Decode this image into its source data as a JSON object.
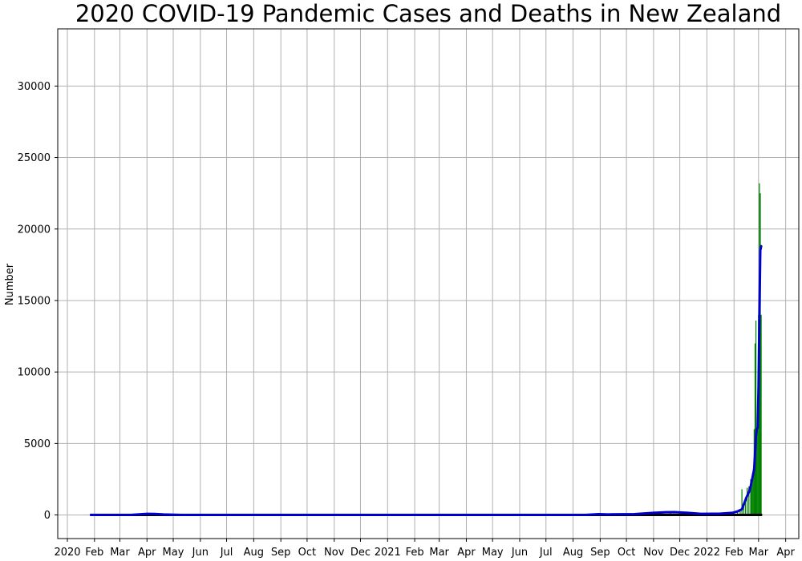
{
  "chart_data": {
    "type": "bar",
    "title": "2020 COVID-19 Pandemic Cases and Deaths in New Zealand",
    "xlabel": "",
    "ylabel": "Number",
    "x_tick_labels": [
      "2020",
      "Feb",
      "Mar",
      "Apr",
      "May",
      "Jun",
      "Jul",
      "Aug",
      "Sep",
      "Oct",
      "Nov",
      "Dec",
      "2021",
      "Feb",
      "Mar",
      "Apr",
      "May",
      "Jun",
      "Jul",
      "Aug",
      "Sep",
      "Oct",
      "Nov",
      "Dec",
      "2022",
      "Feb",
      "Mar",
      "Apr"
    ],
    "x_tick_dates": [
      "2020-01-01",
      "2020-02-01",
      "2020-03-01",
      "2020-04-01",
      "2020-05-01",
      "2020-06-01",
      "2020-07-01",
      "2020-08-01",
      "2020-09-01",
      "2020-10-01",
      "2020-11-01",
      "2020-12-01",
      "2021-01-01",
      "2021-02-01",
      "2021-03-01",
      "2021-04-01",
      "2021-05-01",
      "2021-06-01",
      "2021-07-01",
      "2021-08-01",
      "2021-09-01",
      "2021-10-01",
      "2021-11-01",
      "2021-12-01",
      "2022-01-01",
      "2022-02-01",
      "2022-03-01",
      "2022-04-01"
    ],
    "y_ticks": [
      0,
      5000,
      10000,
      15000,
      20000,
      25000,
      30000
    ],
    "xlim": [
      "2019-12-21",
      "2022-04-16"
    ],
    "ylim": [
      -1650,
      34000
    ],
    "grid": true,
    "colors": {
      "bars": "#008000",
      "moving_average": "#0000cc",
      "deaths": "#000000"
    },
    "series": [
      {
        "type": "bar",
        "x": [
          "2020-03-25",
          "2020-04-01",
          "2020-04-06",
          "2021-08-28",
          "2021-09-01",
          "2021-10-20",
          "2021-11-10",
          "2021-11-20",
          "2021-12-01",
          "2021-12-20",
          "2022-01-20",
          "2022-01-30",
          "2022-02-05",
          "2022-02-08",
          "2022-02-10",
          "2022-02-12",
          "2022-02-14",
          "2022-02-16",
          "2022-02-18",
          "2022-02-20",
          "2022-02-21",
          "2022-02-22",
          "2022-02-23",
          "2022-02-24",
          "2022-02-25",
          "2022-02-26",
          "2022-02-27",
          "2022-02-28",
          "2022-03-01",
          "2022-03-02",
          "2022-03-03",
          "2022-03-04"
        ],
        "values": [
          89,
          89,
          80,
          83,
          60,
          94,
          200,
          220,
          146,
          78,
          100,
          120,
          240,
          300,
          1800,
          700,
          1200,
          1900,
          2000,
          2500,
          2300,
          2900,
          3200,
          6000,
          12000,
          13600,
          6000,
          6200,
          14000,
          23200,
          22500,
          14000
        ]
      },
      {
        "type": "line",
        "x": [
          "2020-01-28",
          "2020-03-15",
          "2020-03-25",
          "2020-04-01",
          "2020-04-10",
          "2020-04-20",
          "2020-05-10",
          "2021-08-15",
          "2021-08-30",
          "2021-09-10",
          "2021-10-10",
          "2021-11-01",
          "2021-11-15",
          "2021-11-25",
          "2021-12-10",
          "2021-12-25",
          "2022-01-15",
          "2022-01-30",
          "2022-02-05",
          "2022-02-10",
          "2022-02-15",
          "2022-02-18",
          "2022-02-20",
          "2022-02-22",
          "2022-02-24",
          "2022-02-26",
          "2022-02-27",
          "2022-02-28",
          "2022-03-01",
          "2022-03-02",
          "2022-03-03",
          "2022-03-04"
        ],
        "values": [
          0,
          10,
          50,
          80,
          75,
          40,
          5,
          5,
          60,
          40,
          60,
          150,
          190,
          200,
          150,
          80,
          90,
          150,
          250,
          400,
          1200,
          1600,
          2000,
          2600,
          3200,
          5500,
          6000,
          6100,
          9000,
          14000,
          18500,
          18800
        ]
      },
      {
        "type": "line",
        "x": [
          "2020-01-28",
          "2022-03-04"
        ],
        "values": [
          0,
          0
        ]
      }
    ]
  }
}
